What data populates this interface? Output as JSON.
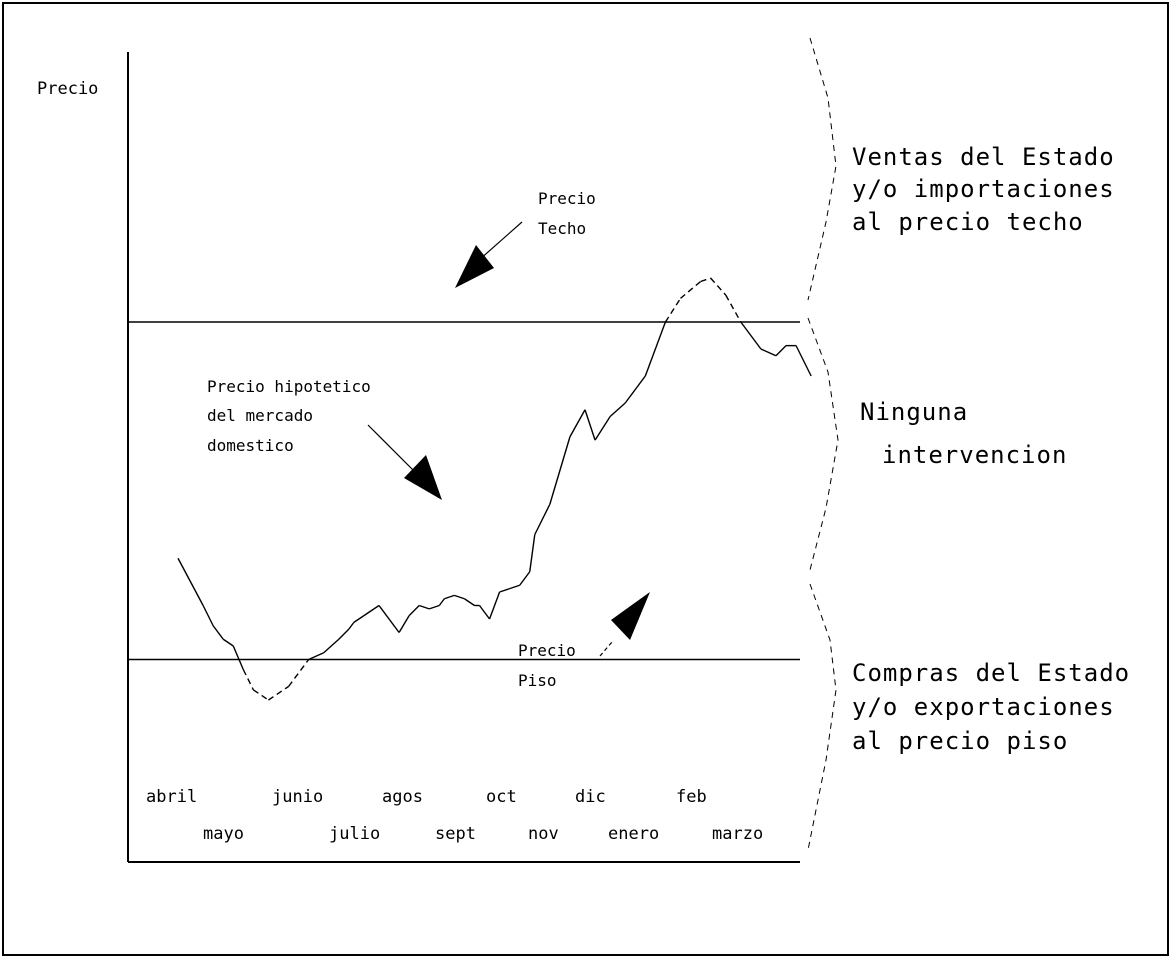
{
  "chart_data": {
    "type": "line",
    "title": "",
    "ylabel": "Precio",
    "xlabel": "",
    "grid": false,
    "x_months_row1": [
      "abril",
      "junio",
      "agos",
      "oct",
      "dic",
      "feb"
    ],
    "x_months_row2": [
      "mayo",
      "julio",
      "sept",
      "nov",
      "enero",
      "marzo"
    ],
    "ceiling_price": 80,
    "floor_price": 30,
    "ylim": [
      0,
      120
    ],
    "series": [
      {
        "x": [
          0,
          0.25,
          0.35,
          0.45,
          0.55,
          0.65,
          0.75,
          0.9,
          1.1,
          1.3,
          1.45,
          1.6,
          1.7,
          1.75,
          1.85,
          1.95,
          2.0,
          2.2,
          2.3,
          2.4,
          2.5,
          2.6,
          2.65,
          2.75,
          2.85,
          2.95,
          3.0,
          3.1,
          3.2,
          3.3,
          3.4,
          3.5,
          3.55,
          3.7,
          3.9,
          4.05,
          4.15,
          4.3,
          4.45,
          4.65,
          4.85,
          5.0,
          5.2,
          5.3,
          5.45,
          5.6,
          5.8,
          5.95,
          6.05,
          6.15,
          6.3
        ],
        "y": [
          45,
          38,
          35,
          33,
          32,
          28.5,
          25.5,
          24,
          26,
          30,
          31,
          33,
          34.5,
          35.5,
          36.5,
          37.5,
          38,
          34,
          36.5,
          38,
          37.5,
          38,
          39,
          39.5,
          39,
          38,
          38,
          36,
          40,
          40.5,
          41,
          43,
          48.5,
          53,
          63,
          67,
          62.5,
          66,
          68,
          72,
          80,
          83.5,
          86,
          86.5,
          84,
          80,
          76,
          75,
          76.5,
          76.5,
          72
        ]
      }
    ],
    "annotations": {
      "ceiling_label": [
        "Precio",
        "Techo"
      ],
      "hypothetical_label": [
        "Precio hipotetico",
        "del mercado",
        "domestico"
      ],
      "floor_label": [
        "Precio",
        "Piso"
      ]
    },
    "zones": {
      "top": [
        "Ventas del Estado",
        "y/o importaciones",
        "al precio techo"
      ],
      "middle": [
        "Ninguna",
        "intervencion"
      ],
      "bottom": [
        "Compras del Estado",
        "y/o exportaciones",
        "al precio piso"
      ]
    }
  }
}
